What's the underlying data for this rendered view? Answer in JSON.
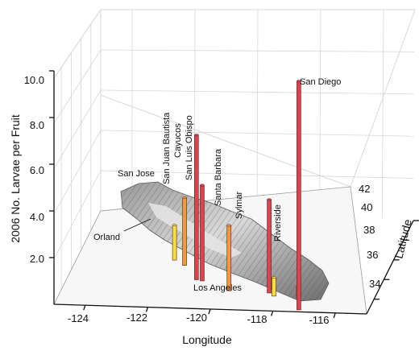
{
  "chart_data": {
    "type": "bar",
    "title": "",
    "xlabel": "Longitude",
    "ylabel": "Latitude",
    "zlabel": "2006 No. Larvae per Fruit",
    "xlim": [
      -125,
      -115
    ],
    "ylim": [
      32.5,
      42
    ],
    "zlim": [
      0,
      10
    ],
    "x_ticks": [
      "-124",
      "-122",
      "-120",
      "-118",
      "-116"
    ],
    "y_ticks": [
      "34",
      "36",
      "38",
      "40",
      "42"
    ],
    "z_ticks": [
      "2.0",
      "4.0",
      "6.0",
      "8.0",
      "10.0"
    ],
    "grid": true,
    "basemap": "shaded-relief map of California",
    "bar_colors": {
      "low": "#f2e23a",
      "mid": "#ef9a3c",
      "high": "#d9444f"
    },
    "series": [
      {
        "locations": [
          {
            "name": "Orland",
            "lon": -122.2,
            "lat": 39.7,
            "value": 0.0
          },
          {
            "name": "San Jose",
            "lon": -121.9,
            "lat": 37.3,
            "value": 1.5
          },
          {
            "name": "San Juan Bautista",
            "lon": -121.5,
            "lat": 36.8,
            "value": 2.9
          },
          {
            "name": "Cayucos",
            "lon": -120.9,
            "lat": 35.4,
            "value": 6.2
          },
          {
            "name": "San Luis Obispo",
            "lon": -120.7,
            "lat": 35.3,
            "value": 4.1
          },
          {
            "name": "Santa Barbara",
            "lon": -119.7,
            "lat": 34.4,
            "value": 2.8
          },
          {
            "name": "Sylmar",
            "lon": -118.4,
            "lat": 34.3,
            "value": 4.0
          },
          {
            "name": "Los Angeles",
            "lon": -118.2,
            "lat": 34.0,
            "value": 0.8
          },
          {
            "name": "Riverside",
            "lon": -117.4,
            "lat": 33.9,
            "value": 0.5
          },
          {
            "name": "San Diego",
            "lon": -117.2,
            "lat": 32.7,
            "value": 9.8
          }
        ]
      }
    ]
  }
}
